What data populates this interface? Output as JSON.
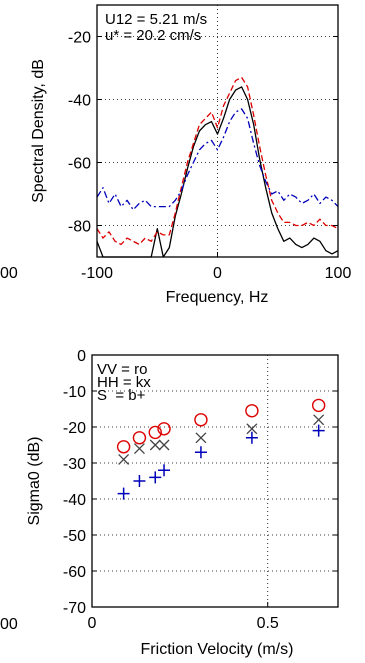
{
  "chart_data": [
    {
      "type": "line",
      "title": "",
      "xlabel": "Frequency, Hz",
      "ylabel": "Spectral Density, dB",
      "xlim": [
        -100,
        100
      ],
      "ylim": [
        -90,
        -10
      ],
      "xticks": [
        -100,
        0,
        100
      ],
      "xtick_labels": [
        "-100",
        "0",
        "100"
      ],
      "clipped_tick_label": "00",
      "yticks": [
        -80,
        -60,
        -40,
        -20
      ],
      "grid": "dotted",
      "annotations": [
        "U12 = 5.21 m/s",
        "u* = 20.2 cm/s"
      ],
      "series": [
        {
          "color": "#000000",
          "style": "solid",
          "x": [
            -100,
            -95,
            -90,
            -85,
            -80,
            -75,
            -70,
            -65,
            -60,
            -55,
            -50,
            -45,
            -40,
            -35,
            -30,
            -25,
            -20,
            -15,
            -10,
            -5,
            0,
            5,
            10,
            15,
            20,
            25,
            30,
            35,
            40,
            45,
            50,
            55,
            60,
            65,
            70,
            75,
            80,
            85,
            90,
            95,
            100
          ],
          "y": [
            -85,
            -90,
            -90,
            -90,
            -90,
            -90,
            -90,
            -90,
            -90,
            -90,
            -81,
            -90,
            -87,
            -77,
            -70,
            -62,
            -55,
            -50,
            -48,
            -47,
            -51,
            -46,
            -40,
            -37,
            -36,
            -40,
            -48,
            -59,
            -68,
            -76,
            -81,
            -85,
            -84,
            -86,
            -87,
            -86,
            -84,
            -85,
            -88,
            -89,
            -88
          ]
        },
        {
          "color": "#dd0000",
          "style": "dashed",
          "x": [
            -100,
            -95,
            -90,
            -85,
            -80,
            -75,
            -70,
            -65,
            -60,
            -55,
            -50,
            -45,
            -40,
            -35,
            -30,
            -25,
            -20,
            -15,
            -10,
            -5,
            0,
            5,
            10,
            15,
            20,
            25,
            30,
            35,
            40,
            45,
            50,
            55,
            60,
            65,
            70,
            75,
            80,
            85,
            90,
            95,
            100
          ],
          "y": [
            -81,
            -84,
            -82,
            -85,
            -86,
            -84,
            -85,
            -86,
            -84,
            -85,
            -82,
            -83,
            -83,
            -76,
            -68,
            -60,
            -54,
            -48,
            -46,
            -44,
            -49,
            -42,
            -38,
            -34,
            -33,
            -36,
            -45,
            -55,
            -64,
            -72,
            -76,
            -79,
            -79,
            -80,
            -80,
            -79,
            -80,
            -78,
            -80,
            -80,
            -81
          ]
        },
        {
          "color": "#0000bb",
          "style": "dashdot",
          "x": [
            -100,
            -95,
            -90,
            -85,
            -80,
            -75,
            -70,
            -65,
            -60,
            -55,
            -50,
            -45,
            -40,
            -35,
            -30,
            -25,
            -20,
            -15,
            -10,
            -5,
            0,
            5,
            10,
            15,
            20,
            25,
            30,
            35,
            40,
            45,
            50,
            55,
            60,
            65,
            70,
            75,
            80,
            85,
            90,
            95,
            100
          ],
          "y": [
            -71,
            -68,
            -73,
            -70,
            -74,
            -72,
            -75,
            -73,
            -72,
            -74,
            -74,
            -74,
            -74,
            -72,
            -69,
            -64,
            -60,
            -56,
            -54,
            -53,
            -56,
            -52,
            -47,
            -44,
            -43,
            -46,
            -54,
            -61,
            -66,
            -70,
            -69,
            -72,
            -70,
            -71,
            -73,
            -72,
            -70,
            -73,
            -71,
            -72,
            -74
          ]
        }
      ]
    },
    {
      "type": "scatter",
      "title": "",
      "xlabel": "Friction Velocity (m/s)",
      "ylabel": "Sigma0 (dB)",
      "xlim": [
        0,
        0.7
      ],
      "ylim": [
        -70,
        0
      ],
      "xticks": [
        0,
        0.5
      ],
      "xtick_labels": [
        "0",
        "0.5"
      ],
      "clipped_tick_label": "00",
      "yticks": [
        -70,
        -60,
        -50,
        -40,
        -30,
        -20,
        -10,
        0
      ],
      "grid": "dotted",
      "legend_lines": [
        "VV = ro",
        "HH = kx",
        "S  = b+"
      ],
      "series": [
        {
          "color": "#dd0000",
          "marker": "o",
          "x": [
            0.09,
            0.135,
            0.18,
            0.205,
            0.31,
            0.455,
            0.645
          ],
          "y": [
            -25.5,
            -23,
            -21.5,
            -20.5,
            -18,
            -15.5,
            -14
          ]
        },
        {
          "color": "#444444",
          "marker": "x",
          "x": [
            0.09,
            0.135,
            0.18,
            0.205,
            0.31,
            0.455,
            0.645
          ],
          "y": [
            -29,
            -26,
            -25,
            -25,
            -23,
            -20.5,
            -18
          ]
        },
        {
          "color": "#0000bb",
          "marker": "+",
          "x": [
            0.09,
            0.135,
            0.18,
            0.205,
            0.31,
            0.455,
            0.645
          ],
          "y": [
            -38.5,
            -35,
            -34,
            -32,
            -27,
            -23,
            -21
          ]
        }
      ]
    }
  ]
}
